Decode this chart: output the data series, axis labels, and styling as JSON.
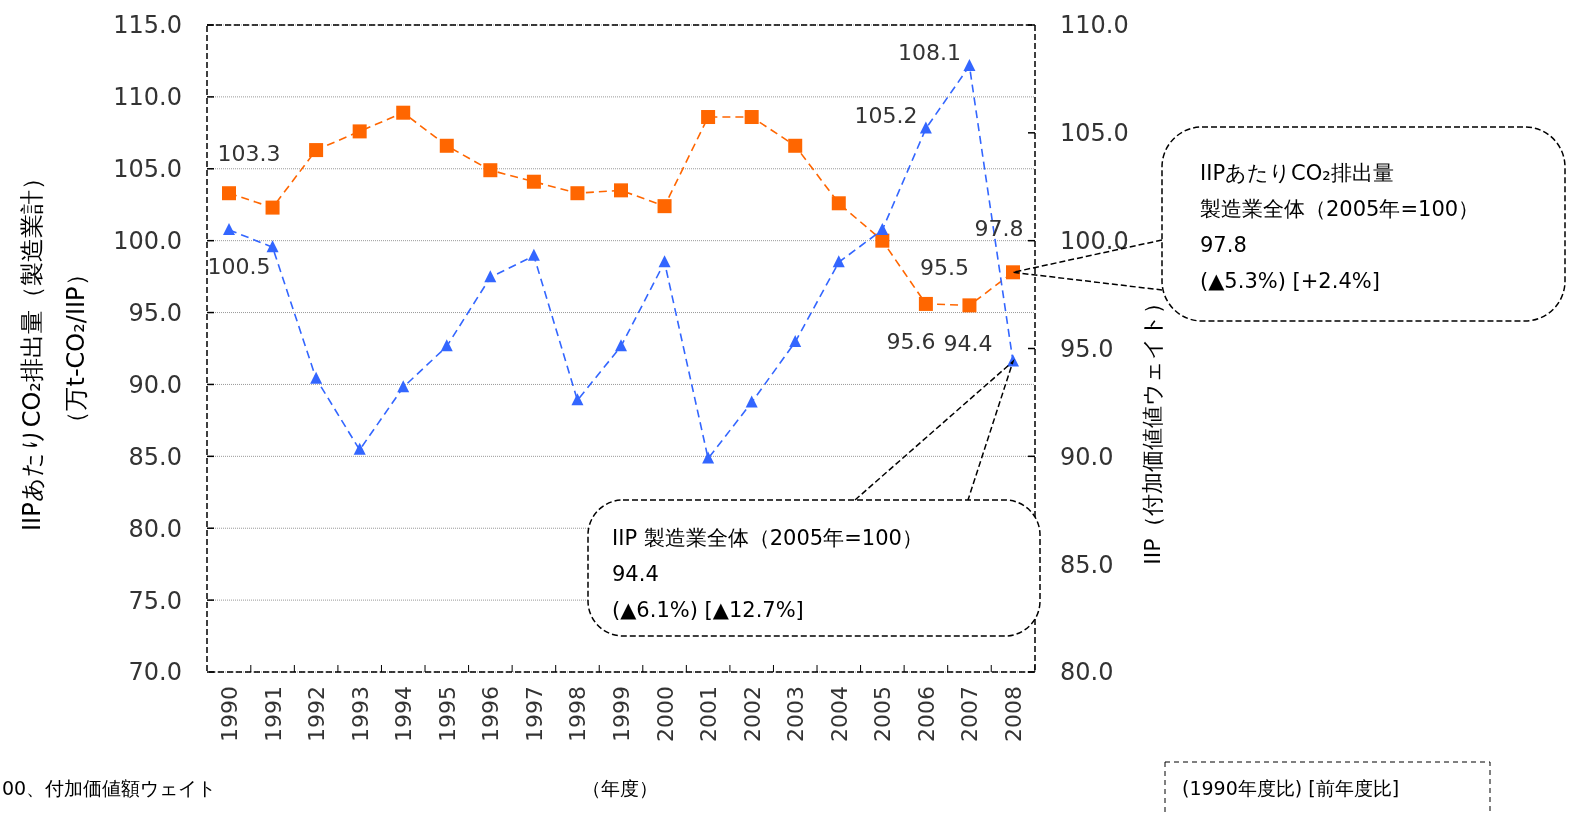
{
  "chart_data": {
    "type": "line",
    "categories": [
      "1990",
      "1991",
      "1992",
      "1993",
      "1994",
      "1995",
      "1996",
      "1997",
      "1998",
      "1999",
      "2000",
      "2001",
      "2002",
      "2003",
      "2004",
      "2005",
      "2006",
      "2007",
      "2008"
    ],
    "series": [
      {
        "color": "#ff6600",
        "marker": "square",
        "values": [
          103.3,
          102.3,
          106.3,
          107.6,
          108.9,
          106.6,
          104.9,
          104.1,
          103.3,
          103.5,
          102.4,
          108.6,
          108.6,
          106.6,
          102.6,
          100.0,
          95.6,
          95.5,
          97.8
        ],
        "value_labels": [
          "103.3",
          null,
          null,
          null,
          null,
          null,
          null,
          null,
          null,
          null,
          null,
          null,
          null,
          null,
          null,
          null,
          "95.6",
          "95.5",
          "97.8"
        ]
      },
      {
        "color": "#3366ff",
        "marker": "triangle",
        "axis": "y2",
        "values": [
          100.5,
          99.7,
          93.6,
          90.3,
          93.2,
          95.1,
          98.3,
          99.3,
          92.6,
          95.1,
          99.0,
          89.9,
          92.5,
          95.3,
          99.0,
          100.5,
          105.2,
          108.1,
          94.4
        ],
        "value_labels": [
          "100.5",
          null,
          null,
          null,
          null,
          null,
          null,
          null,
          null,
          null,
          null,
          null,
          null,
          null,
          null,
          null,
          "105.2",
          "108.1",
          "94.4"
        ]
      }
    ],
    "ylim": [
      70,
      115
    ],
    "yticks": [
      {
        "value": 70,
        "label": "70.0"
      },
      {
        "value": 75,
        "label": "75.0"
      },
      {
        "value": 80,
        "label": "80.0"
      },
      {
        "value": 85,
        "label": "85.0"
      },
      {
        "value": 90,
        "label": "90.0"
      },
      {
        "value": 95,
        "label": "95.0"
      },
      {
        "value": 100,
        "label": "100.0"
      },
      {
        "value": 105,
        "label": "105.0"
      },
      {
        "value": 110,
        "label": "110.0"
      },
      {
        "value": 115,
        "label": "115.0"
      }
    ],
    "y2lim": [
      80,
      110
    ],
    "y2ticks": [
      {
        "value": 80,
        "label": "80.0"
      },
      {
        "value": 85,
        "label": "85.0"
      },
      {
        "value": 90,
        "label": "90.0"
      },
      {
        "value": 95,
        "label": "95.0"
      },
      {
        "value": 100,
        "label": "100.0"
      },
      {
        "value": 105,
        "label": "105.0"
      },
      {
        "value": 110,
        "label": "110.0"
      }
    ],
    "ylabel": "IIPあたりCO₂排出量（製造業計）（万t-CO₂/IIP）",
    "y2label": "IIP（付加価値値ウェイト）",
    "xlabel": "（年度）",
    "grid": "y",
    "line_style": "dashed",
    "annotations": [
      "IIPあたりCO₂排出量",
      "製造業全体（2005年=100）",
      "97.8",
      "(▲5.3%)  [+2.4%]",
      "IIP 製造業全体（2005年=100）",
      "94.4",
      "(▲6.1%)  [▲12.7%]",
      "00、付加価値額ウェイト",
      "(1990年度比) [前年度比]"
    ]
  }
}
